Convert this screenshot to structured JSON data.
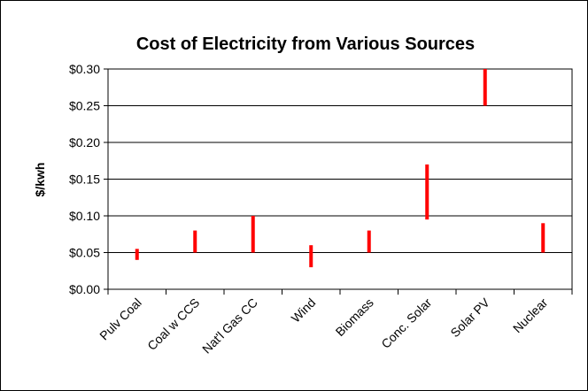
{
  "chart_data": {
    "type": "bar",
    "title": "Cost of Electricity from Various Sources",
    "xlabel": "",
    "ylabel": "$/kwh",
    "ylim": [
      0,
      0.3
    ],
    "y_ticks": [
      "$0.00",
      "$0.05",
      "$0.10",
      "$0.15",
      "$0.20",
      "$0.25",
      "$0.30"
    ],
    "y_tick_values": [
      0,
      0.05,
      0.1,
      0.15,
      0.2,
      0.25,
      0.3
    ],
    "grid": true,
    "legend": "none",
    "categories": [
      "Pulv Coal",
      "Coal w CCS",
      "Nat'l Gas CC",
      "Wind",
      "Biomass",
      "Conc. Solar",
      "Solar PV",
      "Nuclear"
    ],
    "ranges": [
      {
        "low": 0.04,
        "high": 0.055
      },
      {
        "low": 0.05,
        "high": 0.08
      },
      {
        "low": 0.05,
        "high": 0.1
      },
      {
        "low": 0.03,
        "high": 0.06
      },
      {
        "low": 0.05,
        "high": 0.08
      },
      {
        "low": 0.095,
        "high": 0.17
      },
      {
        "low": 0.25,
        "high": 0.3
      },
      {
        "low": 0.05,
        "high": 0.09
      }
    ],
    "bar_color": "#ff0000"
  }
}
